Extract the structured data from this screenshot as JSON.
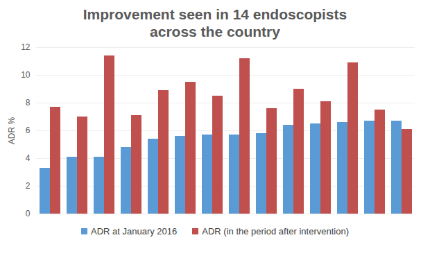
{
  "chart_data": {
    "type": "bar",
    "title": "Improvement seen in 14 endoscopists across the country",
    "y_label": "ADR %",
    "categories": [
      null,
      null,
      null,
      null,
      null,
      null,
      null,
      null,
      null,
      null,
      null,
      null,
      null,
      null
    ],
    "series": [
      {
        "name": "ADR at January 2016",
        "color": "#5b9bd5",
        "values": [
          3.3,
          4.1,
          4.1,
          4.8,
          5.4,
          5.6,
          5.7,
          5.7,
          5.8,
          6.4,
          6.5,
          6.6,
          6.7,
          6.7
        ]
      },
      {
        "name": "ADR (in the period after intervention)",
        "color": "#c0504d",
        "values": [
          7.7,
          7.0,
          11.4,
          7.1,
          8.9,
          9.5,
          8.5,
          11.2,
          7.6,
          9.0,
          8.1,
          10.9,
          7.5,
          6.1
        ]
      }
    ],
    "ylim": [
      0,
      12
    ],
    "yticks": [
      0,
      2,
      4,
      6,
      8,
      10,
      12
    ],
    "grid": true,
    "tick_labels": "y",
    "legend": "bottom"
  }
}
